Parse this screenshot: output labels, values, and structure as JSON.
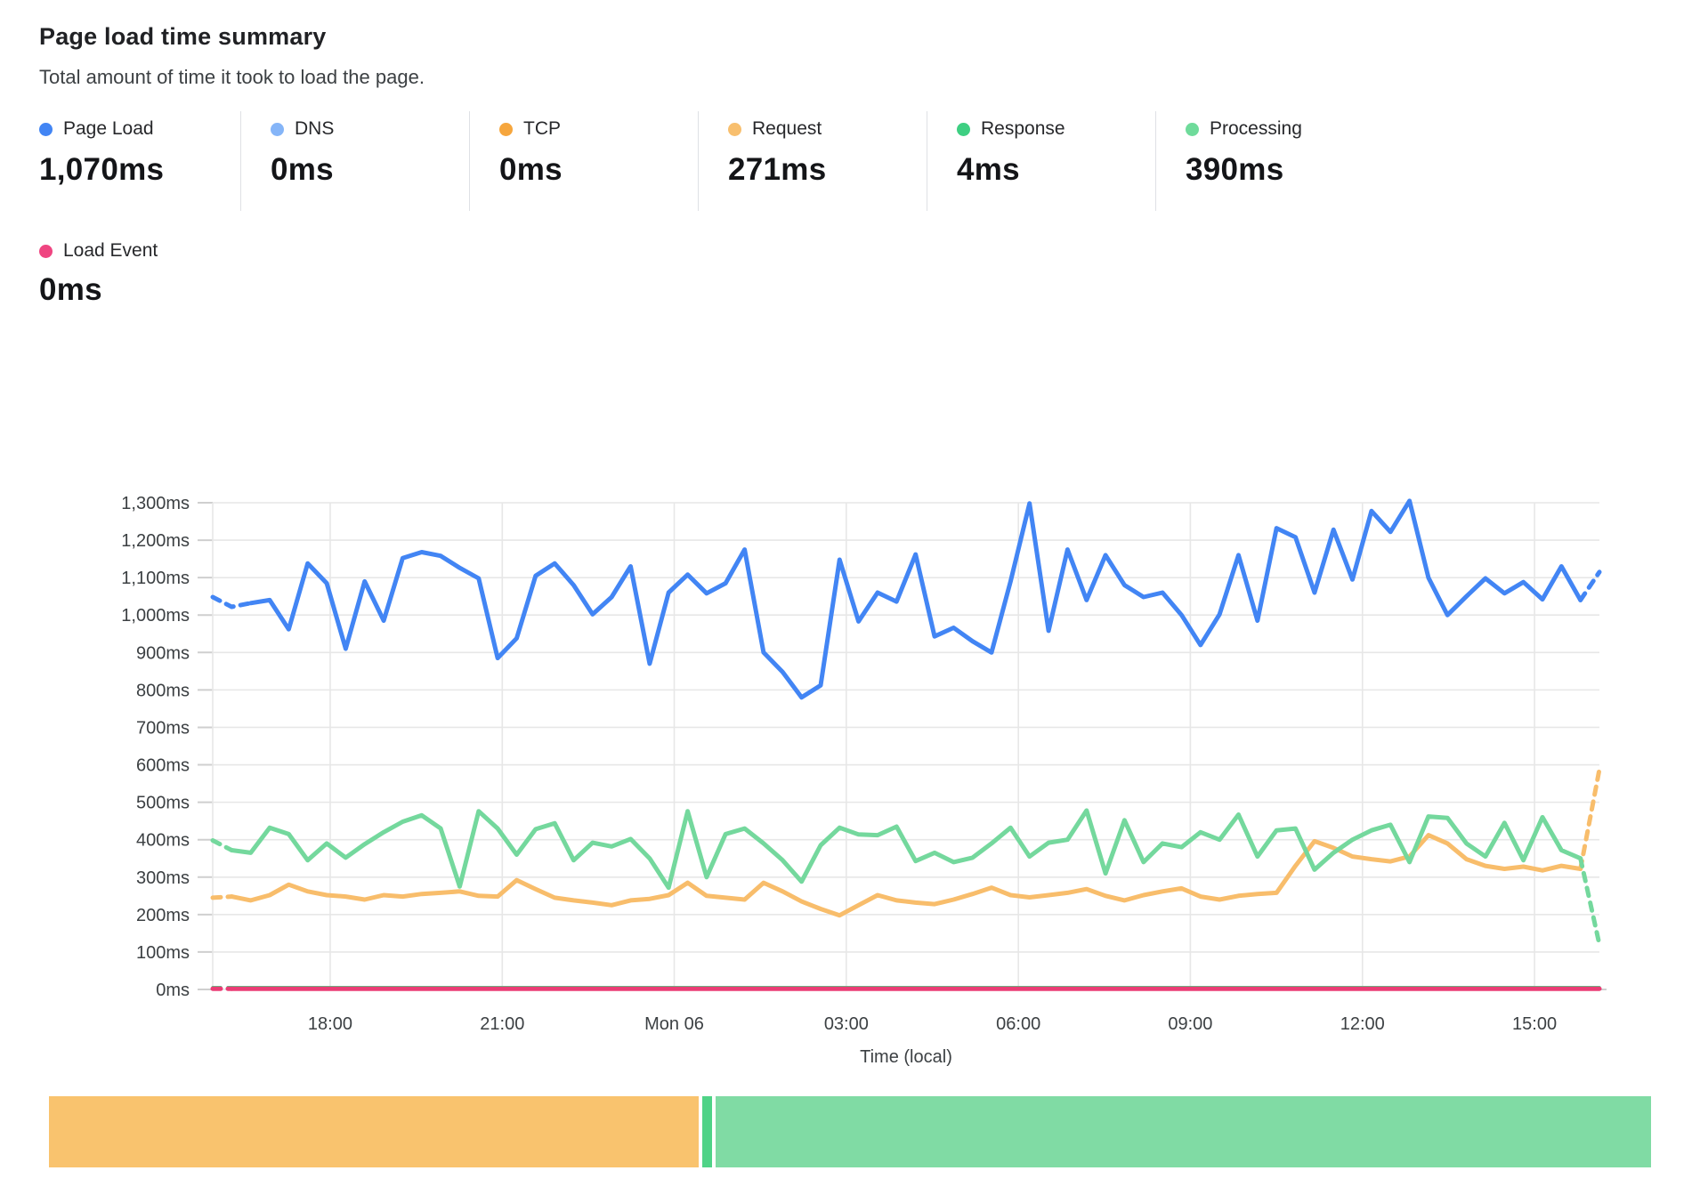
{
  "header": {
    "title": "Page load time summary",
    "subtitle": "Total amount of time it took to load the page."
  },
  "metrics": [
    {
      "id": "page_load",
      "label": "Page Load",
      "value": "1,070ms",
      "color": "#4285f4"
    },
    {
      "id": "dns",
      "label": "DNS",
      "value": "0ms",
      "color": "#85b5f8"
    },
    {
      "id": "tcp",
      "label": "TCP",
      "value": "0ms",
      "color": "#f6a63d"
    },
    {
      "id": "request",
      "label": "Request",
      "value": "271ms",
      "color": "#f8bf6e"
    },
    {
      "id": "response",
      "label": "Response",
      "value": "4ms",
      "color": "#3ecf82"
    },
    {
      "id": "processing",
      "label": "Processing",
      "value": "390ms",
      "color": "#6fdb9b"
    }
  ],
  "load_event_metric": {
    "id": "load_event",
    "label": "Load Event",
    "value": "0ms",
    "color": "#ef4581"
  },
  "chart_data": {
    "type": "line",
    "title": "Page load time summary",
    "xlabel": "Time (local)",
    "ylabel": "",
    "ylim": [
      0,
      1300
    ],
    "grid": true,
    "legend_position": "top",
    "y_ticks": [
      {
        "v": 0,
        "label": "0ms"
      },
      {
        "v": 100,
        "label": "100ms"
      },
      {
        "v": 200,
        "label": "200ms"
      },
      {
        "v": 300,
        "label": "300ms"
      },
      {
        "v": 400,
        "label": "400ms"
      },
      {
        "v": 500,
        "label": "500ms"
      },
      {
        "v": 600,
        "label": "600ms"
      },
      {
        "v": 700,
        "label": "700ms"
      },
      {
        "v": 800,
        "label": "800ms"
      },
      {
        "v": 900,
        "label": "900ms"
      },
      {
        "v": 1000,
        "label": "1,000ms"
      },
      {
        "v": 1100,
        "label": "1,100ms"
      },
      {
        "v": 1200,
        "label": "1,200ms"
      },
      {
        "v": 1300,
        "label": "1,300ms"
      }
    ],
    "x_ticks": [
      {
        "f": 0.0847,
        "label": "18:00"
      },
      {
        "f": 0.2088,
        "label": "21:00"
      },
      {
        "f": 0.3328,
        "label": "Mon 06"
      },
      {
        "f": 0.4569,
        "label": "03:00"
      },
      {
        "f": 0.581,
        "label": "06:00"
      },
      {
        "f": 0.705,
        "label": "09:00"
      },
      {
        "f": 0.8291,
        "label": "12:00"
      },
      {
        "f": 0.9532,
        "label": "15:00"
      }
    ],
    "grid_color": "#e7e7e7",
    "tick_color": "#cfcfcf",
    "series": [
      {
        "id": "request",
        "name": "Request",
        "color": "#f8bd6b",
        "width": 5,
        "lead_dash": 1,
        "tail_dash": 1,
        "values": [
          245,
          248,
          238,
          252,
          280,
          262,
          252,
          248,
          240,
          252,
          248,
          255,
          258,
          262,
          250,
          248,
          292,
          268,
          245,
          238,
          232,
          225,
          238,
          242,
          252,
          285,
          250,
          245,
          240,
          285,
          262,
          235,
          215,
          198,
          225,
          252,
          238,
          232,
          228,
          240,
          255,
          272,
          252,
          246,
          252,
          258,
          268,
          250,
          238,
          252,
          262,
          270,
          248,
          240,
          250,
          255,
          258,
          330,
          396,
          378,
          355,
          348,
          342,
          355,
          412,
          390,
          348,
          330,
          322,
          328,
          318,
          330,
          322,
          588
        ]
      },
      {
        "id": "processing",
        "name": "Processing",
        "color": "#74d89d",
        "width": 5,
        "lead_dash": 1,
        "tail_dash": 1,
        "values": [
          398,
          372,
          365,
          432,
          415,
          345,
          390,
          352,
          388,
          420,
          448,
          465,
          430,
          275,
          476,
          430,
          360,
          428,
          444,
          345,
          392,
          382,
          402,
          350,
          272,
          476,
          300,
          415,
          430,
          390,
          345,
          288,
          385,
          432,
          414,
          412,
          435,
          343,
          365,
          340,
          352,
          390,
          432,
          355,
          392,
          400,
          478,
          310,
          452,
          340,
          390,
          380,
          420,
          400,
          467,
          355,
          425,
          430,
          320,
          365,
          400,
          425,
          440,
          340,
          462,
          458,
          390,
          355,
          445,
          345,
          460,
          372,
          350,
          120
        ]
      },
      {
        "id": "response",
        "name": "Response",
        "color": "#47cf85",
        "width": 3,
        "lead_dash": 1,
        "tail_dash": 0,
        "constant": 6
      },
      {
        "id": "load_event",
        "name": "Load Event",
        "color": "#ea3d75",
        "width": 5,
        "lead_dash": 1,
        "tail_dash": 0,
        "constant": 2
      },
      {
        "id": "page_load",
        "name": "Page Load",
        "color": "#4285f4",
        "width": 5,
        "lead_dash": 2,
        "tail_dash": 1,
        "values": [
          1048,
          1022,
          1032,
          1040,
          962,
          1138,
          1085,
          910,
          1090,
          985,
          1152,
          1168,
          1158,
          1126,
          1098,
          885,
          938,
          1105,
          1138,
          1080,
          1002,
          1048,
          1130,
          870,
          1060,
          1108,
          1058,
          1085,
          1175,
          900,
          848,
          780,
          812,
          1148,
          983,
          1060,
          1036,
          1162,
          943,
          966,
          930,
          900,
          1090,
          1298,
          958,
          1175,
          1040,
          1160,
          1080,
          1048,
          1060,
          1000,
          920,
          1002,
          1160,
          985,
          1232,
          1208,
          1060,
          1228,
          1095,
          1278,
          1222,
          1305,
          1100,
          1000,
          1050,
          1098,
          1058,
          1088,
          1042,
          1130,
          1040,
          1115
        ]
      }
    ]
  },
  "bottom_bar": {
    "segments": [
      {
        "id": "request",
        "name": "Request",
        "value": 271,
        "color": "#f9c36e"
      },
      {
        "id": "response",
        "name": "Response",
        "value": 4,
        "color": "#4fd387"
      },
      {
        "id": "processing",
        "name": "Processing",
        "value": 390,
        "color": "#80dba4"
      }
    ]
  }
}
